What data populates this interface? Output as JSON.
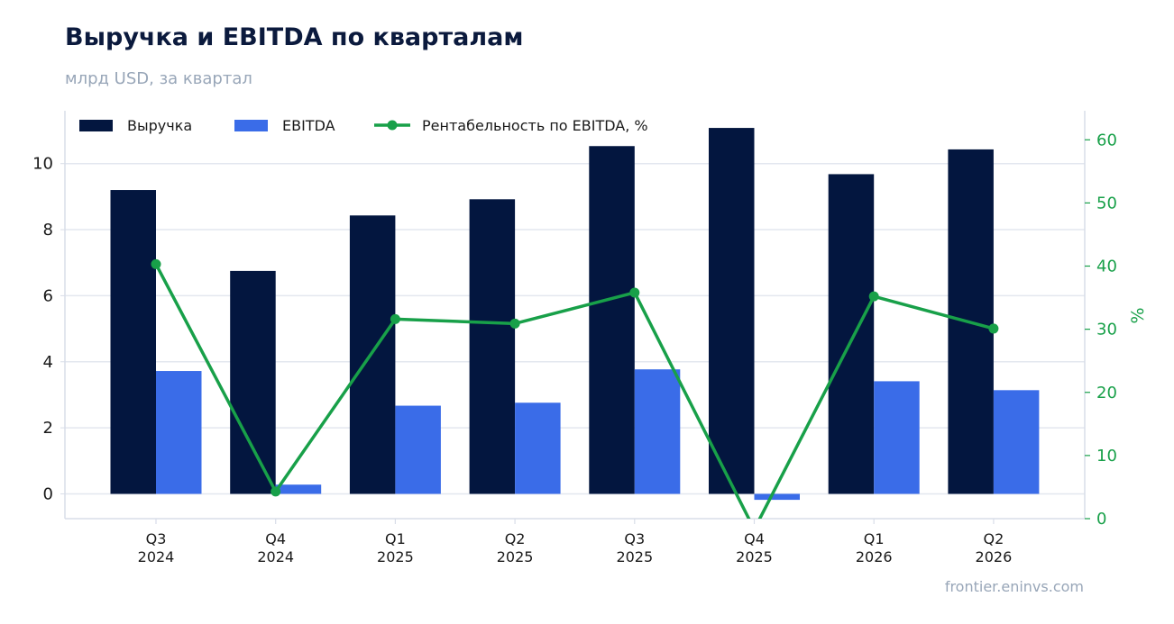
{
  "title": "Выручка и EBITDA по кварталам",
  "subtitle": "млрд USD, за квартал",
  "watermark": "frontier.eninvs.com",
  "chart_data": {
    "type": "bar",
    "categories": [
      "Q3\n2024",
      "Q4\n2024",
      "Q1\n2025",
      "Q2\n2025",
      "Q3\n2025",
      "Q4\n2025",
      "Q1\n2026",
      "Q2\n2026"
    ],
    "series": [
      {
        "name": "Выручка",
        "type": "bar",
        "axis": "left",
        "color": "#03163f",
        "values": [
          9.2,
          6.75,
          8.43,
          8.92,
          10.53,
          11.08,
          9.68,
          10.43
        ]
      },
      {
        "name": "EBITDA",
        "type": "bar",
        "axis": "left",
        "color": "#3a6ce8",
        "values": [
          3.72,
          0.28,
          2.67,
          2.76,
          3.77,
          -0.18,
          3.41,
          3.14
        ]
      },
      {
        "name": "Рентабельность по EBITDA, %",
        "type": "line",
        "axis": "right",
        "color": "#18a049",
        "values": [
          40.3,
          4.3,
          31.6,
          30.9,
          35.8,
          -1.7,
          35.2,
          30.1
        ]
      }
    ],
    "y_left": {
      "label": "",
      "lim": [
        -0.75,
        11.6
      ],
      "ticks": [
        0,
        2,
        4,
        6,
        8,
        10
      ]
    },
    "y_right": {
      "label": "%",
      "lim": [
        0,
        64.6
      ],
      "ticks": [
        0,
        10,
        20,
        30,
        40,
        50,
        60
      ],
      "color": "#18a049"
    },
    "grid": true,
    "legend": "top-left"
  }
}
